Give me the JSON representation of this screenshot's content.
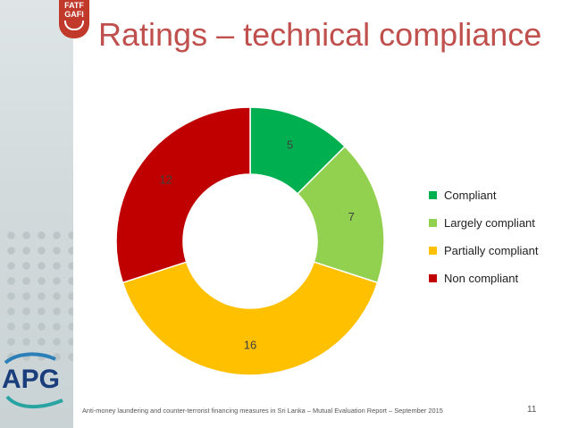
{
  "header": {
    "title": "Ratings – technical compliance",
    "logo_text": [
      "FATF",
      "GAFI"
    ]
  },
  "branding": {
    "apg_logo": "APG"
  },
  "footer": {
    "text": "Anti-money laundering and counter-terrorist financing measures in Sri Lanka – Mutual Evaluation Report – September 2015",
    "page_number": "11"
  },
  "chart_data": {
    "type": "pie",
    "donut": true,
    "categories": [
      "Compliant",
      "Largely compliant",
      "Partially compliant",
      "Non compliant"
    ],
    "values": [
      5,
      7,
      16,
      12
    ],
    "colors": [
      "#00b050",
      "#92d050",
      "#ffc000",
      "#c00000"
    ],
    "legend_placement": "right"
  }
}
